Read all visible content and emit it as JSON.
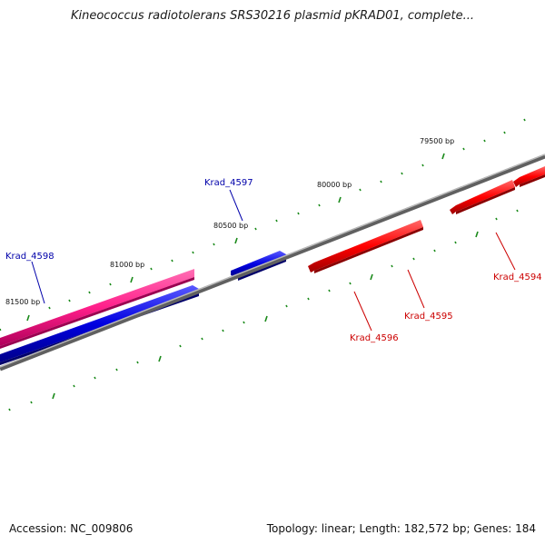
{
  "title": "Kineococcus radiotolerans SRS30216 plasmid pKRAD01, complete...",
  "footer": {
    "accession": "Accession: NC_009806",
    "summary": "Topology: linear; Length: 182,572 bp; Genes: 184"
  },
  "colors": {
    "backbone": "#808080",
    "tick": "#1a8a1a",
    "forward_gene": "#e8006b",
    "reverse_gene_blue": "#0000cc",
    "reverse_gene_red": "#e00000",
    "label_blue": "#0000aa",
    "label_red": "#cc0000"
  },
  "scale_labels": [
    "79500 bp",
    "80000 bp",
    "80500 bp",
    "81000 bp",
    "81500 bp"
  ],
  "gene_labels": [
    {
      "text": "Krad_4597",
      "color": "blue"
    },
    {
      "text": "Krad_4598",
      "color": "blue"
    },
    {
      "text": "Krad_4594",
      "color": "red"
    },
    {
      "text": "Krad_4595",
      "color": "red"
    },
    {
      "text": "Krad_4596",
      "color": "red"
    }
  ]
}
